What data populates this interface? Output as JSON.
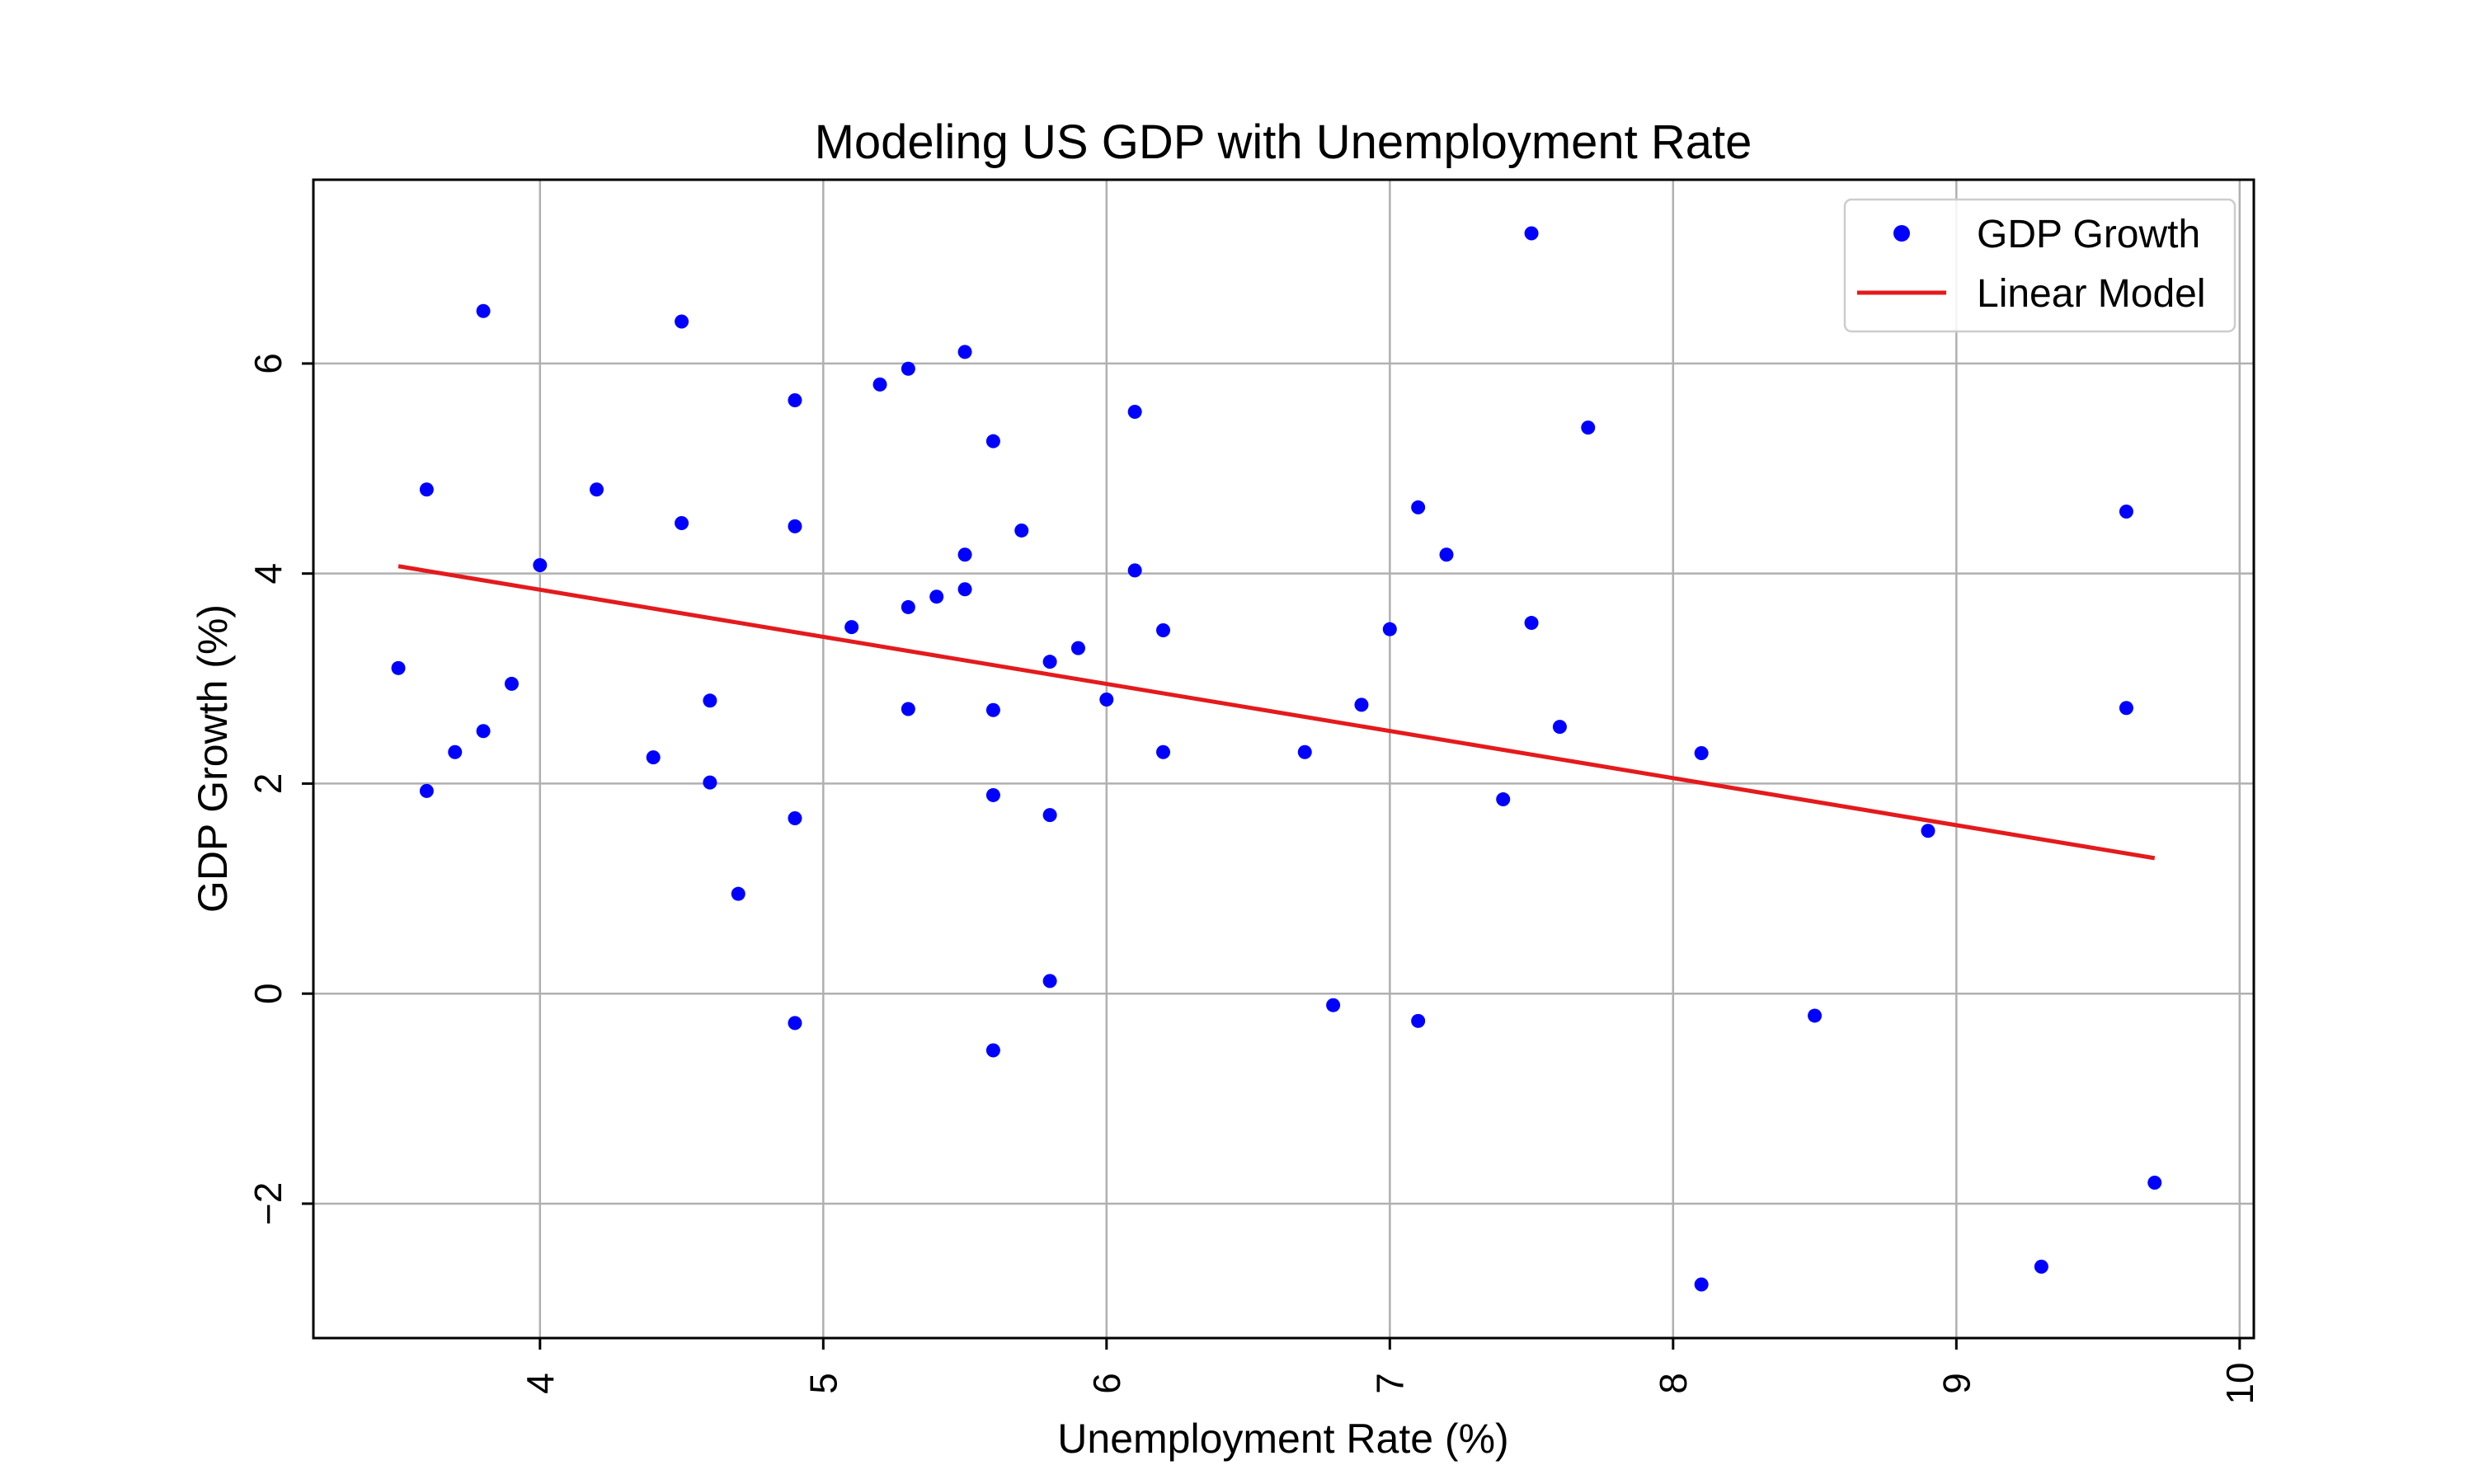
{
  "chart_data": {
    "type": "scatter",
    "title": "Modeling US GDP with Unemployment Rate",
    "xlabel": "Unemployment Rate (%)",
    "ylabel": "GDP Growth (%)",
    "xlim": [
      3.2,
      10.05
    ],
    "ylim": [
      -3.28,
      7.75
    ],
    "xticks": [
      4,
      5,
      6,
      7,
      8,
      9,
      10
    ],
    "yticks": [
      -2,
      0,
      2,
      4,
      6
    ],
    "grid": true,
    "legend_position": "top-right",
    "colors": {
      "points": "#0000ff",
      "line": "#e41a1c",
      "grid": "#b0b0b0"
    },
    "series": [
      {
        "name": "GDP Growth",
        "kind": "points",
        "points": [
          [
            3.5,
            3.1
          ],
          [
            3.6,
            4.8
          ],
          [
            3.6,
            1.93
          ],
          [
            3.7,
            2.3
          ],
          [
            3.8,
            6.5
          ],
          [
            3.8,
            2.5
          ],
          [
            3.9,
            2.95
          ],
          [
            4.0,
            4.08
          ],
          [
            4.2,
            4.8
          ],
          [
            4.4,
            2.25
          ],
          [
            4.5,
            6.4
          ],
          [
            4.5,
            4.48
          ],
          [
            4.6,
            2.79
          ],
          [
            4.6,
            2.01
          ],
          [
            4.7,
            0.95
          ],
          [
            4.9,
            5.65
          ],
          [
            4.9,
            4.45
          ],
          [
            4.9,
            1.67
          ],
          [
            4.9,
            -0.28
          ],
          [
            5.1,
            3.49
          ],
          [
            5.2,
            5.8
          ],
          [
            5.3,
            5.95
          ],
          [
            5.3,
            3.68
          ],
          [
            5.3,
            2.71
          ],
          [
            5.4,
            3.78
          ],
          [
            5.5,
            6.11
          ],
          [
            5.5,
            4.18
          ],
          [
            5.5,
            3.85
          ],
          [
            5.6,
            5.26
          ],
          [
            5.6,
            2.7
          ],
          [
            5.6,
            1.89
          ],
          [
            5.6,
            -0.54
          ],
          [
            5.7,
            4.41
          ],
          [
            5.8,
            3.16
          ],
          [
            5.8,
            1.7
          ],
          [
            5.8,
            0.12
          ],
          [
            5.9,
            3.29
          ],
          [
            6.0,
            2.8
          ],
          [
            6.1,
            5.54
          ],
          [
            6.1,
            4.03
          ],
          [
            6.2,
            3.46
          ],
          [
            6.2,
            2.3
          ],
          [
            6.7,
            2.3
          ],
          [
            6.8,
            -0.11
          ],
          [
            6.9,
            2.75
          ],
          [
            7.0,
            3.47
          ],
          [
            7.1,
            4.63
          ],
          [
            7.1,
            -0.26
          ],
          [
            7.2,
            4.18
          ],
          [
            7.4,
            1.85
          ],
          [
            7.5,
            7.24
          ],
          [
            7.5,
            3.53
          ],
          [
            7.6,
            2.54
          ],
          [
            7.7,
            5.39
          ],
          [
            8.1,
            2.29
          ],
          [
            8.1,
            -2.77
          ],
          [
            8.5,
            -0.21
          ],
          [
            8.9,
            1.55
          ],
          [
            9.3,
            -2.6
          ],
          [
            9.6,
            4.59
          ],
          [
            9.6,
            2.72
          ],
          [
            9.7,
            -1.8
          ]
        ]
      },
      {
        "name": "Linear Model",
        "kind": "line",
        "points": [
          [
            3.5,
            4.07
          ],
          [
            9.7,
            1.29
          ]
        ]
      }
    ]
  }
}
